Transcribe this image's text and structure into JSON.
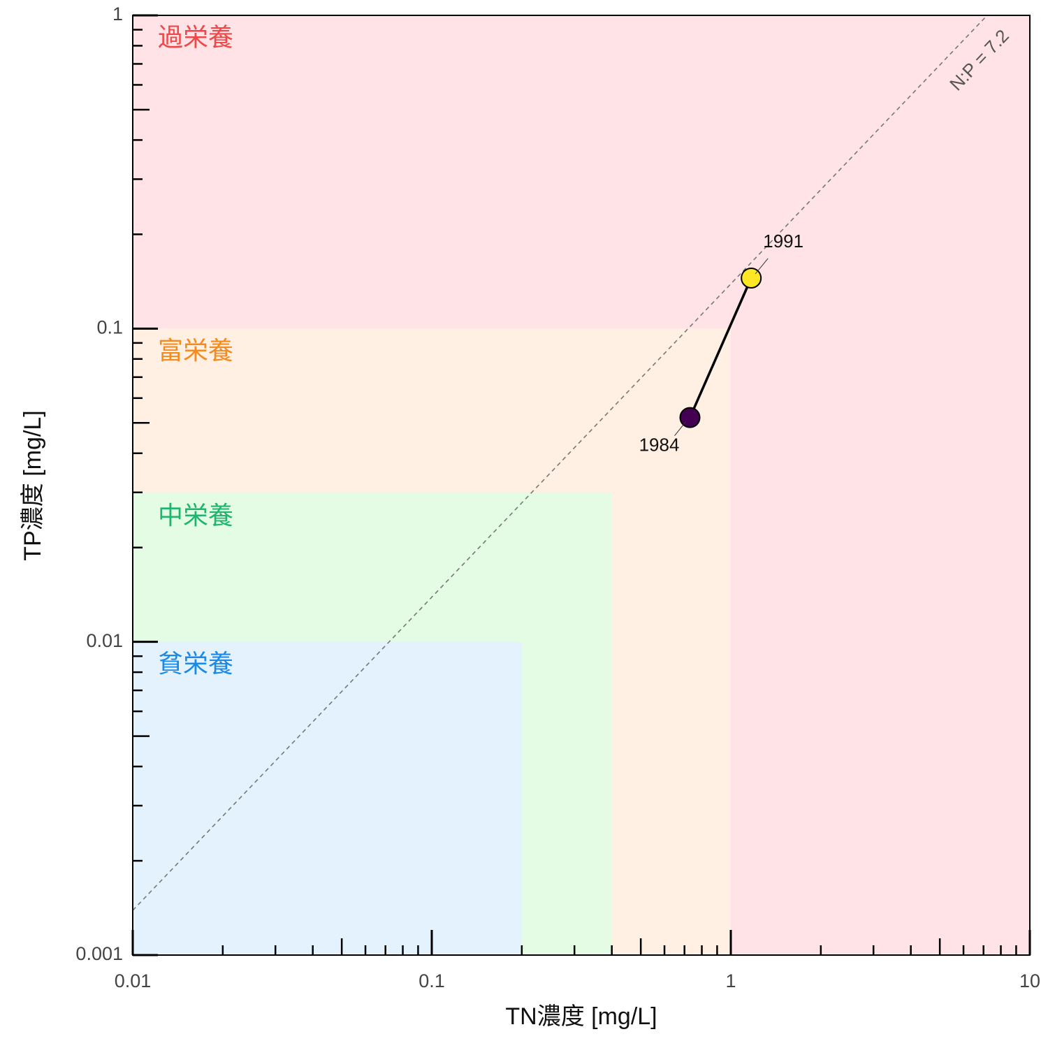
{
  "chart_data": {
    "type": "scatter",
    "title": "",
    "xlabel": "TN濃度 [mg/L]",
    "ylabel": "TP濃度 [mg/L]",
    "xscale": "log",
    "yscale": "log",
    "xlim": [
      0.01,
      10
    ],
    "ylim": [
      0.001,
      1
    ],
    "x_ticks": [
      {
        "value": 0.01,
        "label": "0.01"
      },
      {
        "value": 0.1,
        "label": "0.1"
      },
      {
        "value": 1,
        "label": "1"
      },
      {
        "value": 10,
        "label": "10"
      }
    ],
    "y_ticks": [
      {
        "value": 0.001,
        "label": "0.001"
      },
      {
        "value": 0.01,
        "label": "0.01"
      },
      {
        "value": 0.1,
        "label": "0.1"
      },
      {
        "value": 1,
        "label": "1"
      }
    ],
    "grid": false,
    "zones": [
      {
        "label": "過栄養",
        "tn_max": 10,
        "tp_max": 1,
        "fill": "#ffe3e6",
        "text_color": "#f04848",
        "label_tp": 0.84
      },
      {
        "label": "富栄養",
        "tn_max": 1,
        "tp_max": 0.1,
        "fill": "#fff0e3",
        "text_color": "#f58a1f",
        "label_tp": 0.084
      },
      {
        "label": "中栄養",
        "tn_max": 0.4,
        "tp_max": 0.03,
        "fill": "#e3fce3",
        "text_color": "#1fb56e",
        "label_tp": 0.025
      },
      {
        "label": "貧栄養",
        "tn_max": 0.2,
        "tp_max": 0.01,
        "fill": "#e3f2fd",
        "text_color": "#1a8ae6",
        "label_tp": 0.0084
      }
    ],
    "reference_line": {
      "label": "N:P = 7.2",
      "ratio": 7.2
    },
    "series": [
      {
        "points": [
          {
            "x": 0.73,
            "y": 0.052,
            "label": "1984",
            "color": "#440154"
          },
          {
            "x": 1.17,
            "y": 0.145,
            "label": "1991",
            "color": "#fde725"
          }
        ]
      }
    ]
  }
}
